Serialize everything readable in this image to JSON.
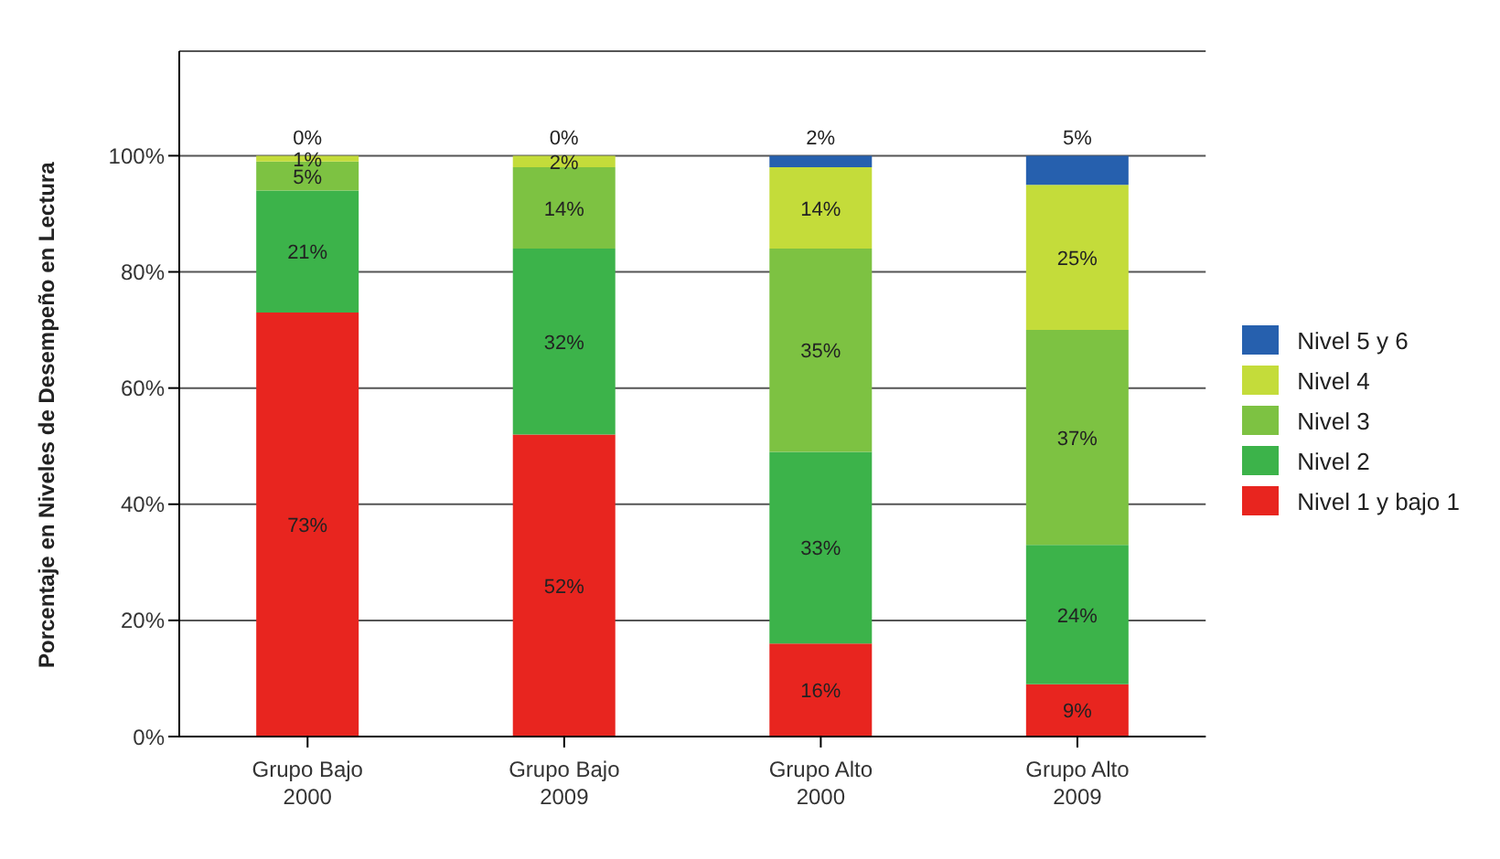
{
  "chart_data": {
    "type": "bar",
    "stacked": true,
    "ylabel": "Porcentaje en Niveles  de Desempeño en Lectura",
    "categories": [
      "Grupo Bajo 2000",
      "Grupo Bajo 2009",
      "Grupo Alto 2000",
      "Grupo Alto 2009"
    ],
    "series": [
      {
        "name": "Nivel 1 y bajo 1",
        "color": "#e8251f",
        "values": [
          73,
          52,
          16,
          9
        ],
        "value_labels": [
          "73%",
          "52%",
          "16%",
          "9%"
        ]
      },
      {
        "name": "Nivel 2",
        "color": "#3cb34a",
        "values": [
          21,
          32,
          33,
          24
        ],
        "value_labels": [
          "21%",
          "32%",
          "33%",
          "24%"
        ]
      },
      {
        "name": "Nivel 3",
        "color": "#7dc242",
        "values": [
          5,
          14,
          35,
          37
        ],
        "value_labels": [
          "5%",
          "14%",
          "35%",
          "37%"
        ]
      },
      {
        "name": "Nivel 4",
        "color": "#c4dc3a",
        "values": [
          1,
          2,
          14,
          25
        ],
        "value_labels": [
          "1%",
          "2%",
          "14%",
          "25%"
        ]
      },
      {
        "name": "Nivel 5 y 6",
        "color": "#2660ae",
        "values": [
          0,
          0,
          2,
          5
        ],
        "value_labels": [
          "0%",
          "0%",
          "2%",
          "5%"
        ]
      }
    ],
    "ylim": [
      0,
      118
    ],
    "yticks": [
      {
        "value": 0,
        "label": "0%"
      },
      {
        "value": 20,
        "label": "20%"
      },
      {
        "value": 40,
        "label": "40%"
      },
      {
        "value": 60,
        "label": "60%"
      },
      {
        "value": 80,
        "label": "80%"
      },
      {
        "value": 100,
        "label": "100%"
      }
    ],
    "grid": "y",
    "legend": "right"
  }
}
